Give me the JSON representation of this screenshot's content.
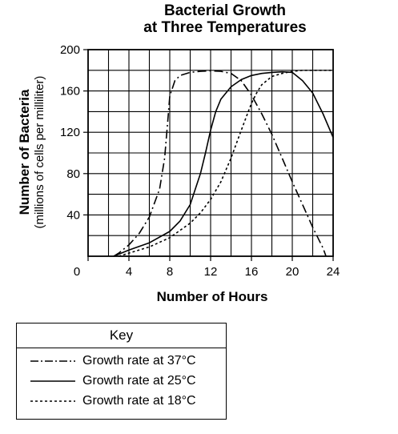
{
  "chart_data": {
    "type": "line",
    "title": [
      "Bacterial Growth",
      "at Three Temperatures"
    ],
    "xlabel": "Number of Hours",
    "ylabel": [
      "Number of Bacteria",
      "(millions of cells per milliliter)"
    ],
    "xlim": [
      0,
      24
    ],
    "ylim": [
      0,
      200
    ],
    "x_ticks": [
      0,
      4,
      8,
      12,
      16,
      20,
      24
    ],
    "y_ticks": [
      40,
      80,
      120,
      160,
      200
    ],
    "grid": true,
    "x_grid_step": 2,
    "y_grid_step": 20,
    "series": [
      {
        "name": "Growth rate at 37°C",
        "style": "dash-dot",
        "points": [
          [
            2.5,
            0
          ],
          [
            3,
            3
          ],
          [
            4,
            11
          ],
          [
            5,
            22
          ],
          [
            6,
            38
          ],
          [
            7,
            65
          ],
          [
            7.5,
            95
          ],
          [
            7.8,
            130
          ],
          [
            8,
            155
          ],
          [
            8.5,
            170
          ],
          [
            9,
            175
          ],
          [
            10,
            178
          ],
          [
            11,
            179
          ],
          [
            12,
            179.5
          ],
          [
            13,
            179
          ],
          [
            14,
            177
          ],
          [
            15,
            170
          ],
          [
            16,
            156
          ],
          [
            17,
            138
          ],
          [
            18,
            118
          ],
          [
            19,
            95
          ],
          [
            20,
            72
          ],
          [
            21,
            50
          ],
          [
            22,
            28
          ],
          [
            23,
            8
          ],
          [
            23.3,
            0
          ]
        ]
      },
      {
        "name": "Growth rate at 25°C",
        "style": "solid",
        "points": [
          [
            2.5,
            0
          ],
          [
            4,
            6
          ],
          [
            6,
            13
          ],
          [
            8,
            24
          ],
          [
            9,
            34
          ],
          [
            10,
            50
          ],
          [
            11,
            80
          ],
          [
            11.5,
            100
          ],
          [
            12,
            122
          ],
          [
            12.5,
            140
          ],
          [
            13,
            152
          ],
          [
            14,
            164
          ],
          [
            15,
            171
          ],
          [
            16,
            175
          ],
          [
            17,
            177
          ],
          [
            18,
            178
          ],
          [
            19,
            178.5
          ],
          [
            20,
            178
          ],
          [
            21,
            170
          ],
          [
            22,
            158
          ],
          [
            23,
            138
          ],
          [
            24,
            115
          ]
        ]
      },
      {
        "name": "Growth rate at 18°C",
        "style": "dotted",
        "points": [
          [
            3,
            0
          ],
          [
            4,
            3
          ],
          [
            6,
            9
          ],
          [
            8,
            18
          ],
          [
            10,
            32
          ],
          [
            11,
            42
          ],
          [
            12,
            55
          ],
          [
            13,
            72
          ],
          [
            14,
            95
          ],
          [
            15,
            122
          ],
          [
            15.5,
            135
          ],
          [
            16,
            148
          ],
          [
            16.5,
            158
          ],
          [
            17,
            166
          ],
          [
            18,
            174
          ],
          [
            19,
            177
          ],
          [
            20,
            179
          ],
          [
            21,
            180
          ],
          [
            22,
            180
          ],
          [
            23,
            180
          ],
          [
            24,
            180
          ]
        ]
      }
    ]
  },
  "key": {
    "title": "Key",
    "entries": [
      "Growth rate at 37°C",
      "Growth rate at 25°C",
      "Growth rate at 18°C"
    ]
  }
}
